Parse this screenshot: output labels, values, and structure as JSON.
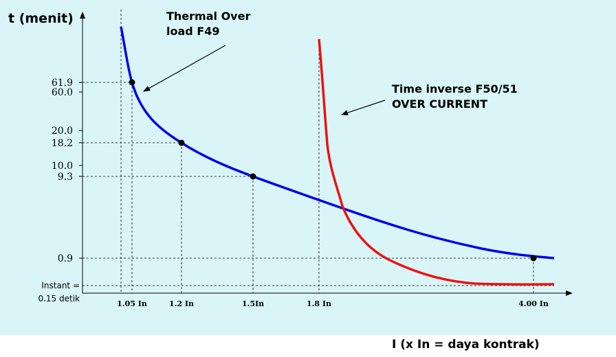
{
  "chart_data": {
    "type": "line",
    "ylabel": "t (menit)",
    "xlabel": "I (x In = daya kontrak)",
    "x_ticks": [
      "1.05 In",
      "1.2 In",
      "1.5In",
      "1.8 In",
      "4.00 In"
    ],
    "y_ticks": [
      "61.9",
      "60.0",
      "20.0",
      "18.2",
      "10.0",
      "9.3",
      "0.9"
    ],
    "instant_label": [
      "Instant =",
      "0.15 detik"
    ],
    "series": [
      {
        "name": "Thermal Over load  F49",
        "color": "#0000ee",
        "marked_points": [
          {
            "x": "1.05 In",
            "y": 61.9
          },
          {
            "x": "1.2 In",
            "y": 18.2
          },
          {
            "x": "1.5In",
            "y": 9.3
          },
          {
            "x": "4.00 In",
            "y": 0.9
          }
        ]
      },
      {
        "name": "Time inverse F50/51 OVER CURRENT",
        "color": "#ee1111",
        "asymptote_x": "1.8 In",
        "settles_to": "Instant = 0.15 detik"
      }
    ],
    "grid": false,
    "guide_lines": "dashed"
  },
  "annotations": {
    "thermal": [
      "Thermal Over",
      "load  F49"
    ],
    "inverse": [
      "Time inverse F50/51",
      "OVER CURRENT"
    ]
  }
}
